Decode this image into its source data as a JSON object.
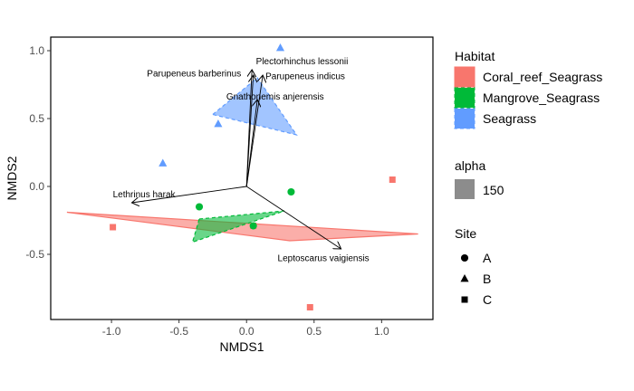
{
  "chart_data": {
    "type": "scatter",
    "xlabel": "NMDS1",
    "ylabel": "NMDS2",
    "xlim": [
      -1.45,
      1.38
    ],
    "ylim": [
      -0.98,
      1.1
    ],
    "x_ticks": [
      -1.0,
      -0.5,
      0.0,
      0.5,
      1.0
    ],
    "x_tick_labels": [
      "-1.0",
      "-0.5",
      "0.0",
      "0.5",
      "1.0"
    ],
    "y_ticks": [
      -0.5,
      0.0,
      0.5,
      1.0
    ],
    "y_tick_labels": [
      "-0.5",
      "0.0",
      "0.5",
      "1.0"
    ],
    "grid": false,
    "colors": {
      "Coral_reef_Seagrass": "#F8766D",
      "Mangrove_Seagrass": "#00BA38",
      "Seagrass": "#619CFF",
      "arrow": "#000000",
      "alpha_swatch": "#8c8c8c"
    },
    "hulls": [
      {
        "habitat": "Coral_reef_Seagrass",
        "points": [
          [
            -1.33,
            -0.19
          ],
          [
            1.27,
            -0.35
          ],
          [
            0.32,
            -0.4
          ]
        ]
      },
      {
        "habitat": "Mangrove_Seagrass",
        "points": [
          [
            -0.35,
            -0.24
          ],
          [
            0.28,
            -0.18
          ],
          [
            -0.4,
            -0.41
          ]
        ]
      },
      {
        "habitat": "Seagrass",
        "points": [
          [
            -0.25,
            0.53
          ],
          [
            0.08,
            0.8
          ],
          [
            0.37,
            0.38
          ]
        ]
      }
    ],
    "points": [
      {
        "habitat": "Coral_reef_Seagrass",
        "site": "C",
        "x": -0.99,
        "y": -0.3
      },
      {
        "habitat": "Coral_reef_Seagrass",
        "site": "C",
        "x": 1.08,
        "y": 0.05
      },
      {
        "habitat": "Coral_reef_Seagrass",
        "site": "C",
        "x": 0.47,
        "y": -0.89
      },
      {
        "habitat": "Coral_reef_Seagrass",
        "site": "C",
        "x": 0.05,
        "y": -0.29
      },
      {
        "habitat": "Mangrove_Seagrass",
        "site": "A",
        "x": -0.35,
        "y": -0.15
      },
      {
        "habitat": "Mangrove_Seagrass",
        "site": "A",
        "x": 0.33,
        "y": -0.04
      },
      {
        "habitat": "Mangrove_Seagrass",
        "site": "A",
        "x": 0.05,
        "y": -0.29
      },
      {
        "habitat": "Seagrass",
        "site": "B",
        "x": 0.25,
        "y": 1.02
      },
      {
        "habitat": "Seagrass",
        "site": "B",
        "x": -0.21,
        "y": 0.46
      },
      {
        "habitat": "Seagrass",
        "site": "B",
        "x": -0.62,
        "y": 0.17
      }
    ],
    "species_vectors": [
      {
        "name": "Plectorhinchus lessonii",
        "x": 0.04,
        "y": 0.86
      },
      {
        "name": "Parupeneus barberinus",
        "x": 0.05,
        "y": 0.82
      },
      {
        "name": "Parupeneus indicus",
        "x": 0.12,
        "y": 0.82
      },
      {
        "name": "Gnathonemis anjerensis",
        "x": 0.08,
        "y": 0.64
      },
      {
        "name": "Lethrinus harak",
        "x": -0.85,
        "y": -0.12
      },
      {
        "name": "Leptoscarus vaigiensis",
        "x": 0.7,
        "y": -0.46
      }
    ],
    "vector_labels": [
      {
        "text": "Plectorhinchus lessonii",
        "x": 0.07,
        "y": 0.9,
        "anchor": "start"
      },
      {
        "text": "Parupeneus barberinus",
        "x": -0.04,
        "y": 0.81,
        "anchor": "end"
      },
      {
        "text": "Parupeneus indicus",
        "x": 0.14,
        "y": 0.79,
        "anchor": "start"
      },
      {
        "text": "Gnathonemis anjerensis",
        "x": -0.15,
        "y": 0.64,
        "anchor": "start"
      },
      {
        "text": "Lethrinus harak",
        "x": -0.99,
        "y": -0.08,
        "anchor": "start"
      },
      {
        "text": "Leptoscarus vaigiensis",
        "x": 0.23,
        "y": -0.55,
        "anchor": "start"
      }
    ],
    "legend": {
      "placement": "right",
      "habitat_title": "Habitat",
      "habitats": [
        "Coral_reef_Seagrass",
        "Mangrove_Seagrass",
        "Seagrass"
      ],
      "alpha_title": "alpha",
      "alpha_value": "150",
      "site_title": "Site",
      "sites": [
        {
          "label": "A",
          "shape": "circle"
        },
        {
          "label": "B",
          "shape": "triangle"
        },
        {
          "label": "C",
          "shape": "square"
        }
      ]
    }
  }
}
